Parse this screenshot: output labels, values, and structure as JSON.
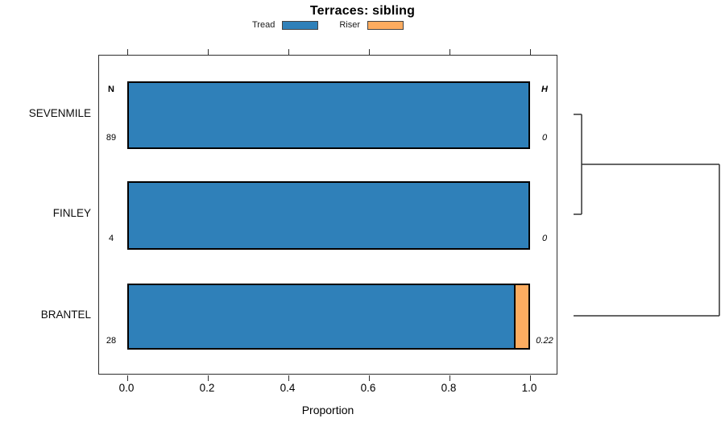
{
  "chart_data": {
    "type": "bar",
    "orientation": "horizontal-stacked",
    "title": "Terraces: sibling",
    "xlabel": "Proportion",
    "xlim": [
      0.0,
      1.0
    ],
    "x_ticks": [
      "0.0",
      "0.2",
      "0.4",
      "0.6",
      "0.8",
      "1.0"
    ],
    "grid": false,
    "legend_position": "top-center",
    "legend": [
      {
        "label": "Tread",
        "color": "#2F80B9"
      },
      {
        "label": "Riser",
        "color": "#FCAC60"
      }
    ],
    "column_headers": {
      "n": "N",
      "h": "H"
    },
    "rows": [
      {
        "label": "SEVENMILE",
        "n": "89",
        "tread": 1.0,
        "riser": 0.0,
        "h": "0"
      },
      {
        "label": "FINLEY",
        "n": "4",
        "tread": 1.0,
        "riser": 0.0,
        "h": "0"
      },
      {
        "label": "BRANTEL",
        "n": "28",
        "tread": 0.964,
        "riser": 0.036,
        "h": "0.22"
      }
    ],
    "dendrogram": {
      "side": "right",
      "merges": [
        {
          "members": [
            "SEVENMILE",
            "FINLEY"
          ],
          "relative_height": 0.06
        },
        {
          "members": [
            "SEVENMILE+FINLEY",
            "BRANTEL"
          ],
          "relative_height": 1.0
        }
      ]
    },
    "colors": {
      "tread": "#2F80B9",
      "riser": "#FCAC60",
      "bar_border": "#000000",
      "axis": "#2e2e2e",
      "dendrogram_line": "#333333"
    }
  }
}
